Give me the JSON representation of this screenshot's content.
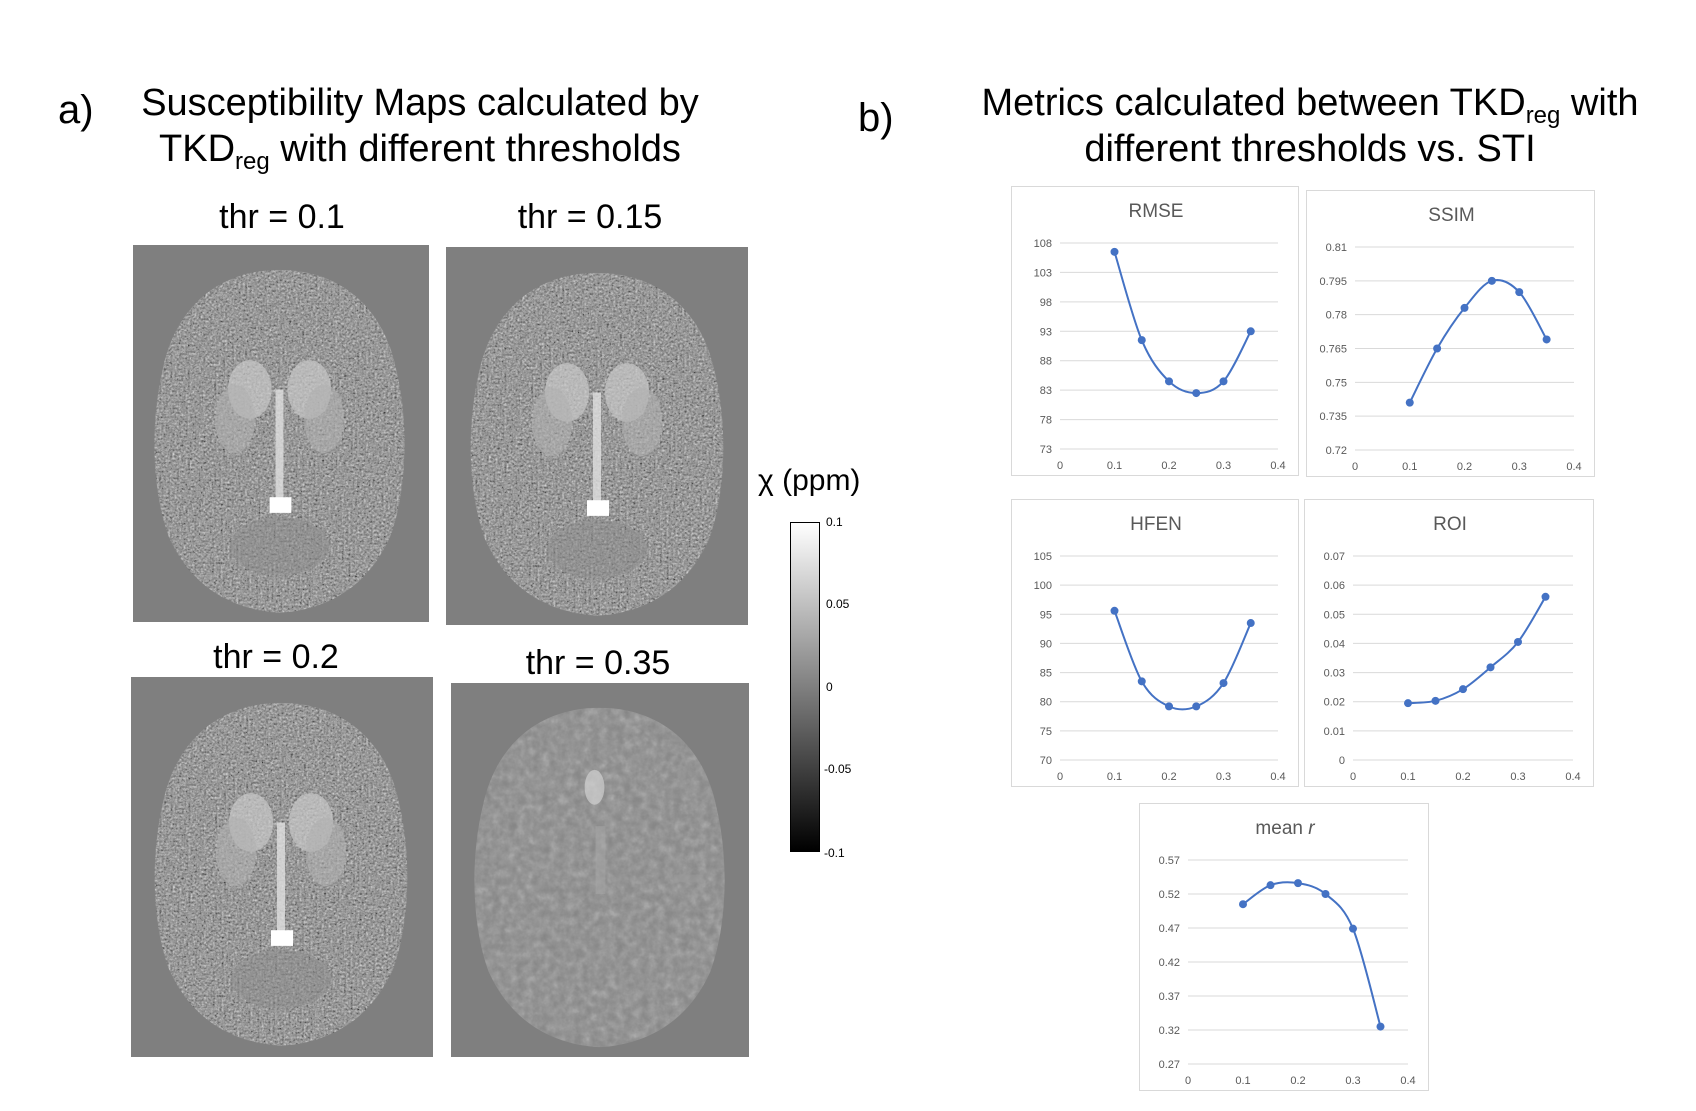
{
  "panel_a": {
    "letter": "a)",
    "title_line1": "Susceptibility Maps calculated by",
    "title_line2_pre": "TKD",
    "title_line2_sub": "reg",
    "title_line2_post": " with different thresholds",
    "maps": [
      {
        "label": "thr = 0.1"
      },
      {
        "label": "thr = 0.15"
      },
      {
        "label": "thr = 0.2"
      },
      {
        "label": "thr = 0.35"
      }
    ],
    "colorbar": {
      "title": "χ (ppm)",
      "ticks": [
        "0.1",
        "0.05",
        "0",
        "-0.05",
        "-0.1"
      ]
    }
  },
  "panel_b": {
    "letter": "b)",
    "title_line1_pre": "Metrics calculated between TKD",
    "title_line1_sub": "reg",
    "title_line1_post": " with",
    "title_line2": "different thresholds vs. STI"
  },
  "chart_data": [
    {
      "id": "rmse",
      "type": "line",
      "title": "RMSE",
      "title_italic_part": "",
      "x": [
        0.1,
        0.15,
        0.2,
        0.25,
        0.3,
        0.35
      ],
      "y": [
        106.5,
        91.5,
        84.5,
        82.5,
        84.5,
        93
      ],
      "xlim": [
        0,
        0.4
      ],
      "xticks": [
        "0",
        "0.1",
        "0.2",
        "0.3",
        "0.4"
      ],
      "ylim": [
        73,
        108
      ],
      "yticks": [
        "108",
        "103",
        "98",
        "93",
        "88",
        "83",
        "78",
        "73"
      ]
    },
    {
      "id": "ssim",
      "type": "line",
      "title": "SSIM",
      "title_italic_part": "",
      "x": [
        0.1,
        0.15,
        0.2,
        0.25,
        0.3,
        0.35
      ],
      "y": [
        0.741,
        0.765,
        0.783,
        0.795,
        0.79,
        0.769
      ],
      "xlim": [
        0,
        0.4
      ],
      "xticks": [
        "0",
        "0.1",
        "0.2",
        "0.3",
        "0.4"
      ],
      "ylim": [
        0.72,
        0.81
      ],
      "yticks": [
        "0.81",
        "0.795",
        "0.78",
        "0.765",
        "0.75",
        "0.735",
        "0.72"
      ]
    },
    {
      "id": "hfen",
      "type": "line",
      "title": "HFEN",
      "title_italic_part": "",
      "x": [
        0.1,
        0.15,
        0.2,
        0.25,
        0.3,
        0.35
      ],
      "y": [
        95.6,
        83.5,
        79.2,
        79.2,
        83.2,
        93.5
      ],
      "xlim": [
        0,
        0.4
      ],
      "xticks": [
        "0",
        "0.1",
        "0.2",
        "0.3",
        "0.4"
      ],
      "ylim": [
        70,
        105
      ],
      "yticks": [
        "105",
        "100",
        "95",
        "90",
        "85",
        "80",
        "75",
        "70"
      ]
    },
    {
      "id": "roi",
      "type": "line",
      "title": "ROI",
      "title_italic_part": "",
      "x": [
        0.1,
        0.15,
        0.2,
        0.25,
        0.3,
        0.35
      ],
      "y": [
        0.0195,
        0.0203,
        0.0243,
        0.0318,
        0.0405,
        0.056
      ],
      "xlim": [
        0,
        0.4
      ],
      "xticks": [
        "0",
        "0.1",
        "0.2",
        "0.3",
        "0.4"
      ],
      "ylim": [
        0,
        0.07
      ],
      "yticks": [
        "0.07",
        "0.06",
        "0.05",
        "0.04",
        "0.03",
        "0.02",
        "0.01",
        "0"
      ]
    },
    {
      "id": "meanr",
      "type": "line",
      "title": "mean ",
      "title_italic_part": "r",
      "x": [
        0.1,
        0.15,
        0.2,
        0.25,
        0.3,
        0.35
      ],
      "y": [
        0.505,
        0.533,
        0.536,
        0.52,
        0.469,
        0.325
      ],
      "xlim": [
        0,
        0.4
      ],
      "xticks": [
        "0",
        "0.1",
        "0.2",
        "0.3",
        "0.4"
      ],
      "ylim": [
        0.27,
        0.57
      ],
      "yticks": [
        "0.57",
        "0.52",
        "0.47",
        "0.42",
        "0.37",
        "0.32",
        "0.27"
      ]
    }
  ],
  "colors": {
    "series": "#4472c4",
    "grid": "#d9d9d9",
    "axis_text": "#595959",
    "map_bg": "#7f7f7f"
  }
}
